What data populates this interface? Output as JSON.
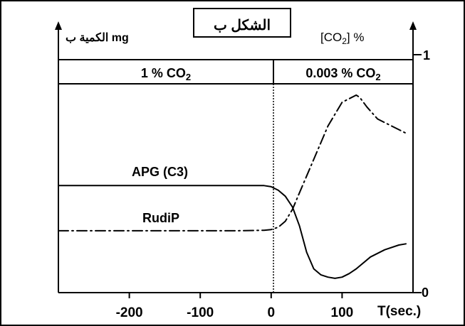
{
  "chart_data": {
    "type": "line",
    "title": "الشكل ب",
    "ylabel_left": "الكمية ب mg",
    "ylabel_right": "[CO₂] %",
    "xlabel": "T(sec.)",
    "x_ticks": [
      "-200",
      "-100",
      "0",
      "100"
    ],
    "x_tick_values": [
      -200,
      -100,
      0,
      100
    ],
    "y_right_ticks": [
      "0",
      "1"
    ],
    "xlim": [
      -300,
      200
    ],
    "ylim": [
      0,
      1
    ],
    "regions": [
      {
        "label_main": "1 % CO",
        "label_sub": "2",
        "range": [
          -300,
          0
        ]
      },
      {
        "label_main": "0.003 % CO",
        "label_sub": "2",
        "range": [
          0,
          200
        ]
      }
    ],
    "series": [
      {
        "name": "APG (C3)",
        "style": "solid",
        "x": [
          -300,
          -250,
          -200,
          -150,
          -100,
          -50,
          -10,
          0,
          10,
          20,
          30,
          40,
          50,
          60,
          70,
          80,
          90,
          100,
          110,
          120,
          140,
          160,
          180,
          190
        ],
        "y": [
          0.45,
          0.45,
          0.45,
          0.45,
          0.45,
          0.45,
          0.45,
          0.445,
          0.43,
          0.405,
          0.36,
          0.28,
          0.17,
          0.1,
          0.075,
          0.065,
          0.06,
          0.065,
          0.08,
          0.1,
          0.15,
          0.18,
          0.2,
          0.205
        ]
      },
      {
        "name": "RudiP",
        "style": "dashdot",
        "x": [
          -300,
          -250,
          -200,
          -150,
          -100,
          -50,
          -10,
          0,
          10,
          20,
          30,
          40,
          60,
          80,
          100,
          120,
          125,
          135,
          150,
          170,
          190
        ],
        "y": [
          0.26,
          0.26,
          0.26,
          0.26,
          0.26,
          0.26,
          0.262,
          0.265,
          0.275,
          0.3,
          0.35,
          0.42,
          0.56,
          0.7,
          0.8,
          0.83,
          0.82,
          0.78,
          0.73,
          0.7,
          0.67
        ]
      }
    ]
  }
}
